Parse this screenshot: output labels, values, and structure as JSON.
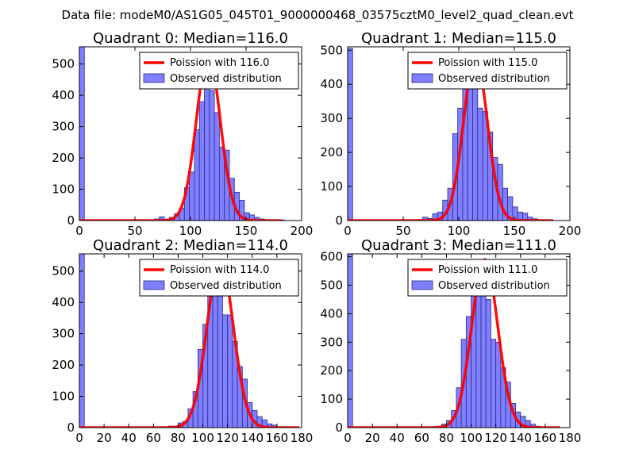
{
  "figure": {
    "suptitle": "Data file: modeM0/AS1G05_045T01_9000000468_03575cztM0_level2_quad_clean.evt"
  },
  "colors": {
    "histogram_fill": "#7f7fff",
    "histogram_edge": "#2a2a8a",
    "poisson_line": "#ff0000",
    "axes": "#000000"
  },
  "chart_data": [
    {
      "type": "bar",
      "title": "Quadrant 0: Median=116.0",
      "xlim": [
        0,
        200
      ],
      "ylim": [
        0,
        555
      ],
      "xticks": [
        "0",
        "50",
        "100",
        "150",
        "200"
      ],
      "xtick_values": [
        0,
        50,
        100,
        150,
        200
      ],
      "yticks": [
        "0",
        "100",
        "200",
        "300",
        "400",
        "500"
      ],
      "ytick_values": [
        0,
        100,
        200,
        300,
        400,
        500
      ],
      "bin_width": 4.5,
      "bins": [
        {
          "x": 0,
          "count": 555
        },
        {
          "x": 67.5,
          "count": 5
        },
        {
          "x": 72,
          "count": 12
        },
        {
          "x": 76.5,
          "count": 3
        },
        {
          "x": 81,
          "count": 10
        },
        {
          "x": 85.5,
          "count": 22
        },
        {
          "x": 90,
          "count": 40
        },
        {
          "x": 94.5,
          "count": 105
        },
        {
          "x": 99,
          "count": 155
        },
        {
          "x": 103.5,
          "count": 290
        },
        {
          "x": 108,
          "count": 380
        },
        {
          "x": 112.5,
          "count": 455
        },
        {
          "x": 117,
          "count": 415
        },
        {
          "x": 121.5,
          "count": 345
        },
        {
          "x": 126,
          "count": 235
        },
        {
          "x": 130.5,
          "count": 225
        },
        {
          "x": 135,
          "count": 135
        },
        {
          "x": 139.5,
          "count": 90
        },
        {
          "x": 144,
          "count": 65
        },
        {
          "x": 148.5,
          "count": 25
        },
        {
          "x": 153,
          "count": 18
        },
        {
          "x": 157.5,
          "count": 10
        },
        {
          "x": 162,
          "count": 5
        },
        {
          "x": 166.5,
          "count": 3
        },
        {
          "x": 180,
          "count": 2
        }
      ],
      "poisson": {
        "mean": 116.0,
        "peak": 530,
        "x_range": [
          0,
          182
        ]
      },
      "legend": {
        "location": "upper right",
        "entries": [
          "Poission with 116.0",
          "Observed distribution"
        ]
      }
    },
    {
      "type": "bar",
      "title": "Quadrant 1: Median=115.0",
      "xlim": [
        0,
        200
      ],
      "ylim": [
        0,
        510
      ],
      "xticks": [
        "0",
        "50",
        "100",
        "150",
        "200"
      ],
      "xtick_values": [
        0,
        50,
        100,
        150,
        200
      ],
      "yticks": [
        "0",
        "100",
        "200",
        "300",
        "400",
        "500"
      ],
      "ytick_values": [
        0,
        100,
        200,
        300,
        400,
        500
      ],
      "bin_width": 4.5,
      "bins": [
        {
          "x": 0,
          "count": 505
        },
        {
          "x": 63,
          "count": 3
        },
        {
          "x": 67.5,
          "count": 10
        },
        {
          "x": 72,
          "count": 6
        },
        {
          "x": 76.5,
          "count": 20
        },
        {
          "x": 81,
          "count": 25
        },
        {
          "x": 85.5,
          "count": 60
        },
        {
          "x": 90,
          "count": 95
        },
        {
          "x": 94.5,
          "count": 255
        },
        {
          "x": 99,
          "count": 330
        },
        {
          "x": 103.5,
          "count": 450
        },
        {
          "x": 108,
          "count": 390
        },
        {
          "x": 112.5,
          "count": 420
        },
        {
          "x": 117,
          "count": 330
        },
        {
          "x": 121.5,
          "count": 320
        },
        {
          "x": 126,
          "count": 260
        },
        {
          "x": 130.5,
          "count": 185
        },
        {
          "x": 135,
          "count": 165
        },
        {
          "x": 139.5,
          "count": 95
        },
        {
          "x": 144,
          "count": 70
        },
        {
          "x": 148.5,
          "count": 40
        },
        {
          "x": 153,
          "count": 25
        },
        {
          "x": 157.5,
          "count": 22
        },
        {
          "x": 162,
          "count": 10
        },
        {
          "x": 166.5,
          "count": 5
        }
      ],
      "poisson": {
        "mean": 115.0,
        "peak": 480,
        "x_range": [
          0,
          185
        ]
      },
      "legend": {
        "location": "upper right",
        "entries": [
          "Poission with 115.0",
          "Observed distribution"
        ]
      }
    },
    {
      "type": "bar",
      "title": "Quadrant 2: Median=114.0",
      "xlim": [
        0,
        180
      ],
      "ylim": [
        0,
        555
      ],
      "xticks": [
        "0",
        "20",
        "40",
        "60",
        "80",
        "100",
        "120",
        "140",
        "160",
        "180"
      ],
      "xtick_values": [
        0,
        20,
        40,
        60,
        80,
        100,
        120,
        140,
        160,
        180
      ],
      "yticks": [
        "0",
        "100",
        "200",
        "300",
        "400",
        "500"
      ],
      "ytick_values": [
        0,
        100,
        200,
        300,
        400,
        500
      ],
      "bin_width": 4.0,
      "bins": [
        {
          "x": 0,
          "count": 555
        },
        {
          "x": 72,
          "count": 5
        },
        {
          "x": 76,
          "count": 3
        },
        {
          "x": 80,
          "count": 15
        },
        {
          "x": 84,
          "count": 20
        },
        {
          "x": 88,
          "count": 60
        },
        {
          "x": 92,
          "count": 115
        },
        {
          "x": 96,
          "count": 250
        },
        {
          "x": 100,
          "count": 330
        },
        {
          "x": 104,
          "count": 470
        },
        {
          "x": 108,
          "count": 430
        },
        {
          "x": 112,
          "count": 450
        },
        {
          "x": 116,
          "count": 360
        },
        {
          "x": 120,
          "count": 360
        },
        {
          "x": 124,
          "count": 275
        },
        {
          "x": 128,
          "count": 195
        },
        {
          "x": 132,
          "count": 155
        },
        {
          "x": 136,
          "count": 80
        },
        {
          "x": 140,
          "count": 55
        },
        {
          "x": 144,
          "count": 35
        },
        {
          "x": 148,
          "count": 25
        },
        {
          "x": 152,
          "count": 12
        },
        {
          "x": 156,
          "count": 8
        },
        {
          "x": 160,
          "count": 3
        }
      ],
      "poisson": {
        "mean": 114.0,
        "peak": 535,
        "x_range": [
          0,
          178
        ]
      },
      "legend": {
        "location": "upper right",
        "entries": [
          "Poission with 114.0",
          "Observed distribution"
        ]
      }
    },
    {
      "type": "bar",
      "title": "Quadrant 3: Median=111.0",
      "xlim": [
        0,
        180
      ],
      "ylim": [
        0,
        610
      ],
      "xticks": [
        "0",
        "20",
        "40",
        "60",
        "80",
        "100",
        "120",
        "140",
        "160",
        "180"
      ],
      "xtick_values": [
        0,
        20,
        40,
        60,
        80,
        100,
        120,
        140,
        160,
        180
      ],
      "yticks": [
        "0",
        "100",
        "200",
        "300",
        "400",
        "500",
        "600"
      ],
      "ytick_values": [
        0,
        100,
        200,
        300,
        400,
        500,
        600
      ],
      "bin_width": 4.0,
      "bins": [
        {
          "x": 0,
          "count": 610
        },
        {
          "x": 72,
          "count": 5
        },
        {
          "x": 76,
          "count": 12
        },
        {
          "x": 80,
          "count": 25
        },
        {
          "x": 84,
          "count": 60
        },
        {
          "x": 88,
          "count": 140
        },
        {
          "x": 92,
          "count": 310
        },
        {
          "x": 96,
          "count": 390
        },
        {
          "x": 100,
          "count": 550
        },
        {
          "x": 104,
          "count": 480
        },
        {
          "x": 108,
          "count": 560
        },
        {
          "x": 112,
          "count": 450
        },
        {
          "x": 116,
          "count": 310
        },
        {
          "x": 120,
          "count": 300
        },
        {
          "x": 124,
          "count": 210
        },
        {
          "x": 128,
          "count": 160
        },
        {
          "x": 132,
          "count": 85
        },
        {
          "x": 136,
          "count": 55
        },
        {
          "x": 140,
          "count": 40
        },
        {
          "x": 144,
          "count": 25
        },
        {
          "x": 148,
          "count": 12
        },
        {
          "x": 152,
          "count": 5
        }
      ],
      "poisson": {
        "mean": 111.0,
        "peak": 590,
        "x_range": [
          0,
          172
        ]
      },
      "legend": {
        "location": "upper right",
        "entries": [
          "Poission with 111.0",
          "Observed distribution"
        ]
      }
    }
  ]
}
